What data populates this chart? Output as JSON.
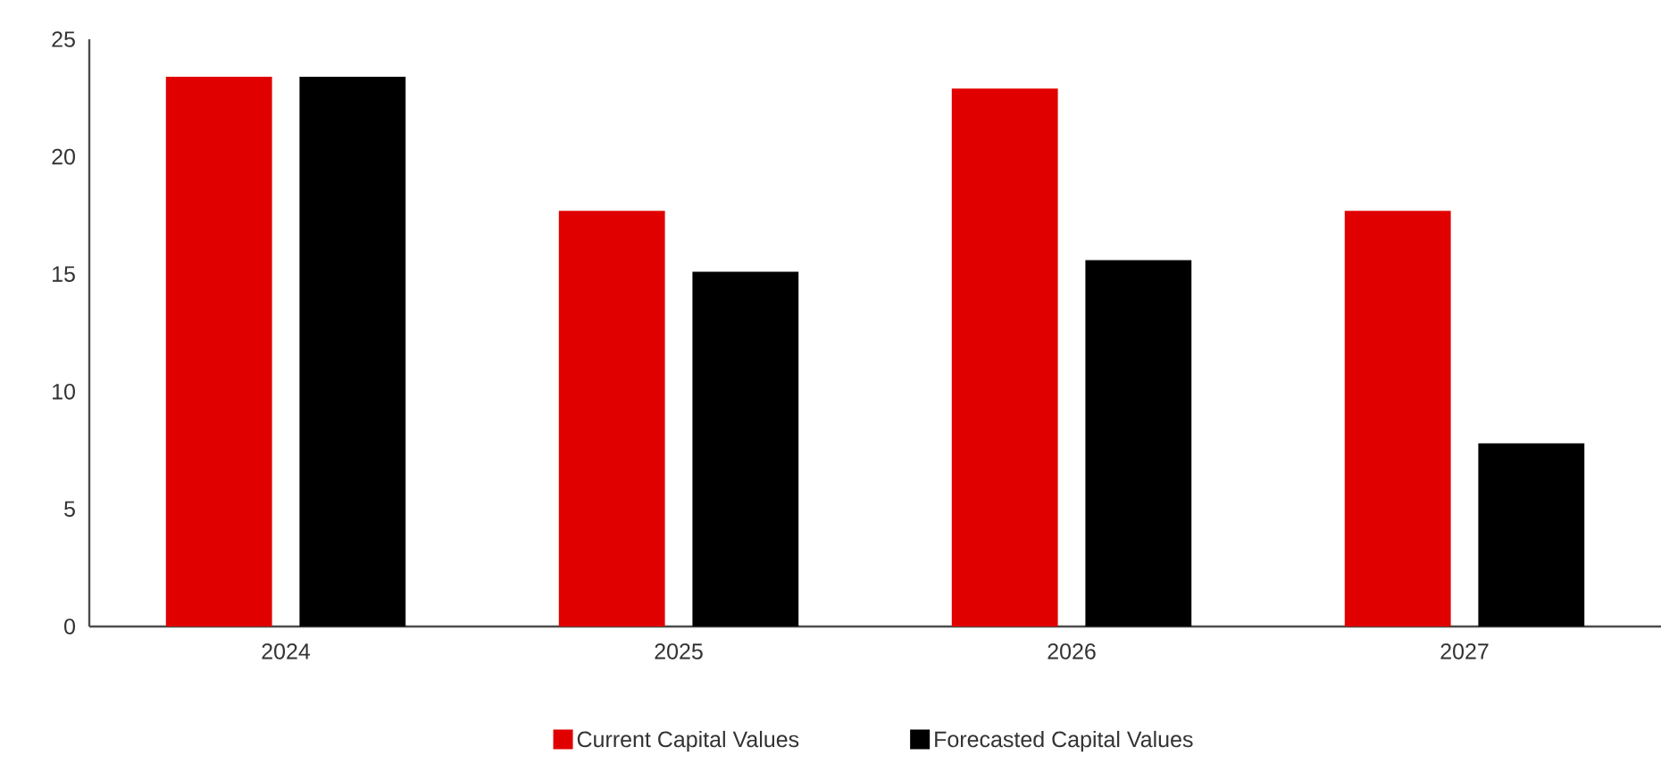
{
  "chart_data": {
    "type": "bar",
    "categories": [
      "2024",
      "2025",
      "2026",
      "2027"
    ],
    "series": [
      {
        "name": "Current Capital Values",
        "color": "#e00000",
        "values": [
          23.4,
          17.7,
          22.9,
          17.7
        ]
      },
      {
        "name": "Forecasted Capital Values",
        "color": "#000000",
        "values": [
          23.4,
          15.1,
          15.6,
          7.8
        ]
      }
    ],
    "ylim": [
      0,
      25
    ],
    "yticks": [
      0,
      5,
      10,
      15,
      20,
      25
    ],
    "legend": "bottom"
  }
}
